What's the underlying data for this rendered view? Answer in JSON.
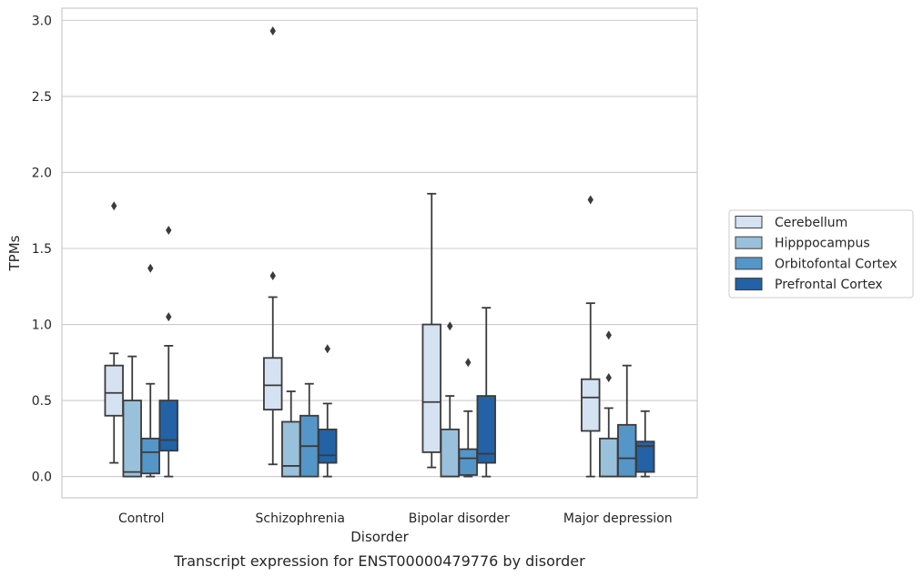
{
  "chart_data": {
    "type": "box",
    "caption": "Transcript expression for ENST00000479776 by disorder",
    "xlabel": "Disorder",
    "ylabel": "TPMs",
    "ylim": [
      -0.14,
      3.08
    ],
    "yticks": [
      0.0,
      0.5,
      1.0,
      1.5,
      2.0,
      2.5,
      3.0
    ],
    "ytick_labels": [
      "0.0",
      "0.5",
      "1.0",
      "1.5",
      "2.0",
      "2.5",
      "3.0"
    ],
    "grid": true,
    "legend_position": "right",
    "categories": [
      "Control",
      "Schizophrenia",
      "Bipolar disorder",
      "Major depression"
    ],
    "series": [
      {
        "name": "Cerebellum",
        "color": "#d5e2f2",
        "boxes": [
          {
            "whislo": 0.09,
            "q1": 0.4,
            "med": 0.55,
            "q3": 0.73,
            "whishi": 0.81,
            "fliers": [
              1.78
            ]
          },
          {
            "whislo": 0.08,
            "q1": 0.44,
            "med": 0.6,
            "q3": 0.78,
            "whishi": 1.18,
            "fliers": [
              1.32,
              2.93
            ]
          },
          {
            "whislo": 0.06,
            "q1": 0.16,
            "med": 0.49,
            "q3": 1.0,
            "whishi": 1.86,
            "fliers": []
          },
          {
            "whislo": 0.0,
            "q1": 0.3,
            "med": 0.52,
            "q3": 0.64,
            "whishi": 1.14,
            "fliers": [
              1.82
            ]
          }
        ]
      },
      {
        "name": "Hipppocampus",
        "color": "#99c1dc",
        "boxes": [
          {
            "whislo": 0.0,
            "q1": 0.0,
            "med": 0.03,
            "q3": 0.5,
            "whishi": 0.79,
            "fliers": []
          },
          {
            "whislo": 0.0,
            "q1": 0.0,
            "med": 0.07,
            "q3": 0.36,
            "whishi": 0.56,
            "fliers": []
          },
          {
            "whislo": 0.0,
            "q1": 0.0,
            "med": 0.0,
            "q3": 0.31,
            "whishi": 0.53,
            "fliers": [
              0.99
            ]
          },
          {
            "whislo": 0.0,
            "q1": 0.0,
            "med": 0.0,
            "q3": 0.25,
            "whishi": 0.45,
            "fliers": [
              0.65,
              0.93
            ]
          }
        ]
      },
      {
        "name": "Orbitofontal Cortex",
        "color": "#5496c8",
        "boxes": [
          {
            "whislo": 0.0,
            "q1": 0.02,
            "med": 0.16,
            "q3": 0.25,
            "whishi": 0.61,
            "fliers": [
              1.37
            ]
          },
          {
            "whislo": 0.0,
            "q1": 0.0,
            "med": 0.2,
            "q3": 0.4,
            "whishi": 0.61,
            "fliers": []
          },
          {
            "whislo": 0.0,
            "q1": 0.01,
            "med": 0.12,
            "q3": 0.18,
            "whishi": 0.43,
            "fliers": [
              0.75
            ]
          },
          {
            "whislo": 0.0,
            "q1": 0.0,
            "med": 0.12,
            "q3": 0.34,
            "whishi": 0.73,
            "fliers": []
          }
        ]
      },
      {
        "name": "Prefrontal Cortex",
        "color": "#2262a5",
        "boxes": [
          {
            "whislo": 0.0,
            "q1": 0.17,
            "med": 0.24,
            "q3": 0.5,
            "whishi": 0.86,
            "fliers": [
              1.05,
              1.62
            ]
          },
          {
            "whislo": 0.0,
            "q1": 0.09,
            "med": 0.14,
            "q3": 0.31,
            "whishi": 0.48,
            "fliers": [
              0.84
            ]
          },
          {
            "whislo": 0.0,
            "q1": 0.09,
            "med": 0.15,
            "q3": 0.53,
            "whishi": 1.11,
            "fliers": []
          },
          {
            "whislo": 0.0,
            "q1": 0.03,
            "med": 0.2,
            "q3": 0.23,
            "whishi": 0.43,
            "fliers": []
          }
        ]
      }
    ]
  }
}
